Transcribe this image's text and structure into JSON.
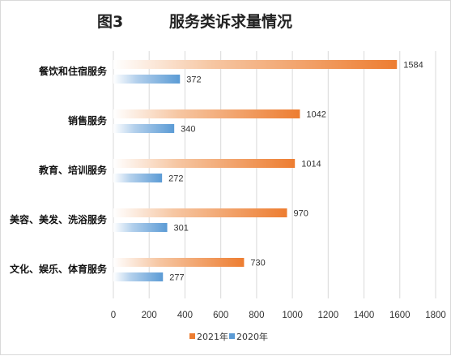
{
  "chart_data": {
    "type": "bar",
    "orientation": "horizontal",
    "figure_label": "图3",
    "title": "服务类诉求量情况",
    "categories": [
      "餐饮和住宿服务",
      "销售服务",
      "教育、培训服务",
      "美容、美发、洗浴服务",
      "文化、娱乐、体育服务"
    ],
    "series": [
      {
        "name": "2021年",
        "values": [
          1584,
          1042,
          1014,
          970,
          730
        ],
        "color": "#ed7d31"
      },
      {
        "name": "2020年",
        "values": [
          372,
          340,
          272,
          301,
          277
        ],
        "color": "#5b9bd5"
      }
    ],
    "xlim": [
      0,
      1800
    ],
    "xticks": [
      0,
      200,
      400,
      600,
      800,
      1000,
      1200,
      1400,
      1600,
      1800
    ],
    "grid": true,
    "legend_position": "bottom"
  }
}
